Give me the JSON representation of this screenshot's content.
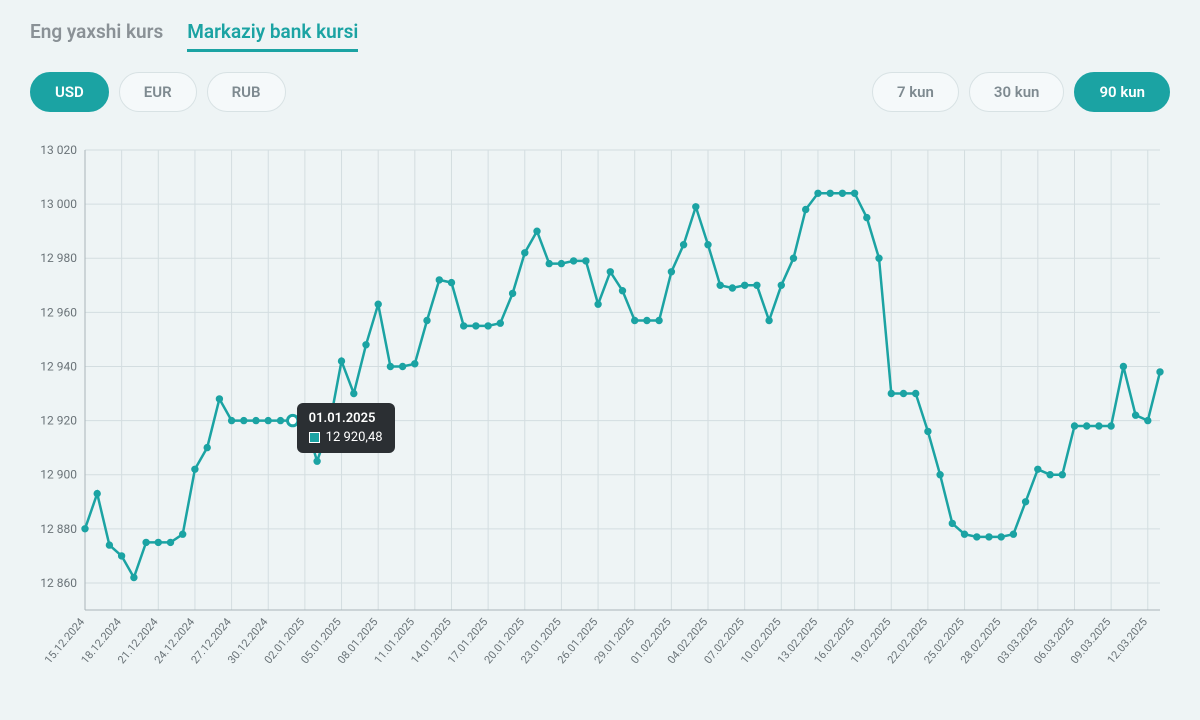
{
  "tabs": [
    {
      "label": "Eng yaxshi kurs",
      "active": false
    },
    {
      "label": "Markaziy bank kursi",
      "active": true
    }
  ],
  "currencies": [
    {
      "label": "USD",
      "active": true
    },
    {
      "label": "EUR",
      "active": false
    },
    {
      "label": "RUB",
      "active": false
    }
  ],
  "ranges": [
    {
      "label": "7 kun",
      "active": false
    },
    {
      "label": "30 kun",
      "active": false
    },
    {
      "label": "90 kun",
      "active": true
    }
  ],
  "tooltip": {
    "date": "01.01.2025",
    "value": "12 920,48",
    "point_index": 17
  },
  "chart": {
    "type": "line",
    "line_color": "#1ba3a3",
    "marker_color": "#1ba3a3",
    "marker_radius": 3.2,
    "line_width": 2.5,
    "background_color": "#eef4f5",
    "grid_color": "#d3dde0",
    "axis_color": "#a9b5b9",
    "label_color": "#6a7378",
    "label_fontsize": 12,
    "ylim": [
      12850,
      13020
    ],
    "yticks": [
      12860,
      12880,
      12900,
      12920,
      12940,
      12960,
      12980,
      13000,
      13020
    ],
    "ytick_labels": [
      "12 860",
      "12 880",
      "12 900",
      "12 920",
      "12 940",
      "12 960",
      "12 980",
      "13 000",
      "13 020"
    ],
    "xtick_labels": [
      "15.12.2024",
      "18.12.2024",
      "21.12.2024",
      "24.12.2024",
      "27.12.2024",
      "30.12.2024",
      "02.01.2025",
      "05.01.2025",
      "08.01.2025",
      "11.01.2025",
      "14.01.2025",
      "17.01.2025",
      "20.01.2025",
      "23.01.2025",
      "26.01.2025",
      "29.01.2025",
      "01.02.2025",
      "04.02.2025",
      "07.02.2025",
      "10.02.2025",
      "13.02.2025",
      "16.02.2025",
      "19.02.2025",
      "22.02.2025",
      "25.02.2025",
      "28.02.2025",
      "03.03.2025",
      "06.03.2025",
      "09.03.2025",
      "12.03.2025"
    ],
    "xtick_every": 3,
    "values": [
      12880,
      12893,
      12874,
      12870,
      12862,
      12875,
      12875,
      12875,
      12878,
      12902,
      12910,
      12928,
      12920,
      12920,
      12920,
      12920,
      12920,
      12920,
      12920,
      12905,
      12918,
      12942,
      12930,
      12948,
      12963,
      12940,
      12940,
      12941,
      12957,
      12972,
      12971,
      12955,
      12955,
      12955,
      12956,
      12967,
      12982,
      12990,
      12978,
      12978,
      12979,
      12979,
      12963,
      12975,
      12968,
      12957,
      12957,
      12957,
      12975,
      12985,
      12999,
      12985,
      12970,
      12969,
      12970,
      12970,
      12957,
      12970,
      12980,
      12998,
      13004,
      13004,
      13004,
      13004,
      12995,
      12980,
      12930,
      12930,
      12930,
      12916,
      12900,
      12882,
      12878,
      12877,
      12877,
      12877,
      12878,
      12890,
      12902,
      12900,
      12900,
      12918,
      12918,
      12918,
      12918,
      12940,
      12922,
      12920,
      12938
    ]
  }
}
